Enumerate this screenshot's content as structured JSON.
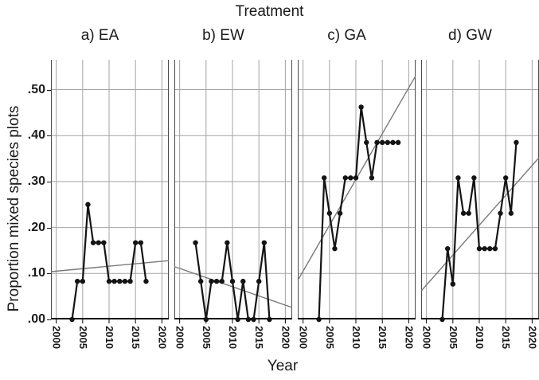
{
  "chart_data": {
    "type": "line",
    "title": "Treatment",
    "xlabel": "Year",
    "ylabel": "Proportion mixed species plots",
    "x_ticks": [
      "2000",
      "2005",
      "2010",
      "2015",
      "2020"
    ],
    "x_tick_years": [
      2000,
      2005,
      2010,
      2015,
      2020
    ],
    "y_ticks": [
      ".00",
      ".10",
      ".20",
      ".30",
      ".40",
      ".50"
    ],
    "y_tick_values": [
      0,
      0.1,
      0.2,
      0.3,
      0.4,
      0.5
    ],
    "x_domain": [
      1999,
      2021.3
    ],
    "ylim": [
      0,
      0.565
    ],
    "grid": true,
    "legend": "none",
    "colors": {
      "data_line": "#141414",
      "data_point": "#141414",
      "trend_line": "#7a7a7a",
      "gridline": "#a3a3a3",
      "panel_border": "#4a4a4a",
      "axis": "#000000"
    },
    "panels": [
      {
        "id": "a",
        "label": "a) EA",
        "years": [
          2003,
          2004,
          2005,
          2006,
          2007,
          2008,
          2009,
          2010,
          2011,
          2012,
          2013,
          2014,
          2015,
          2016,
          2017
        ],
        "values": [
          0.0,
          0.083,
          0.083,
          0.25,
          0.167,
          0.167,
          0.167,
          0.083,
          0.083,
          0.083,
          0.083,
          0.083,
          0.167,
          0.167,
          0.083
        ],
        "trend": {
          "x1": 1999,
          "v1": 0.104,
          "x2": 2021.3,
          "v2": 0.128
        }
      },
      {
        "id": "b",
        "label": "b) EW",
        "years": [
          2003,
          2004,
          2005,
          2006,
          2007,
          2008,
          2009,
          2010,
          2011,
          2012,
          2013,
          2014,
          2015,
          2016,
          2017
        ],
        "values": [
          0.167,
          0.083,
          0.0,
          0.083,
          0.083,
          0.083,
          0.167,
          0.083,
          0.0,
          0.083,
          0.0,
          0.0,
          0.083,
          0.167,
          0.0
        ],
        "trend": {
          "x1": 1999,
          "v1": 0.115,
          "x2": 2021.3,
          "v2": 0.026
        }
      },
      {
        "id": "c",
        "label": "c) GA",
        "years": [
          2003,
          2004,
          2005,
          2006,
          2007,
          2008,
          2009,
          2010,
          2011,
          2012,
          2013,
          2014,
          2015,
          2016,
          2017,
          2018
        ],
        "values": [
          0.0,
          0.308,
          0.231,
          0.154,
          0.231,
          0.308,
          0.308,
          0.308,
          0.462,
          0.385,
          0.308,
          0.385,
          0.385,
          0.385,
          0.385,
          0.385
        ],
        "trend": {
          "x1": 1999,
          "v1": 0.085,
          "x2": 2021.3,
          "v2": 0.53
        }
      },
      {
        "id": "d",
        "label": "d) GW",
        "years": [
          2003,
          2004,
          2005,
          2006,
          2007,
          2008,
          2009,
          2010,
          2011,
          2012,
          2013,
          2014,
          2015,
          2016,
          2017
        ],
        "values": [
          0.0,
          0.154,
          0.077,
          0.308,
          0.231,
          0.231,
          0.308,
          0.154,
          0.154,
          0.154,
          0.154,
          0.231,
          0.308,
          0.231,
          0.385
        ],
        "trend": {
          "x1": 1999,
          "v1": 0.062,
          "x2": 2021.3,
          "v2": 0.352
        }
      }
    ]
  }
}
